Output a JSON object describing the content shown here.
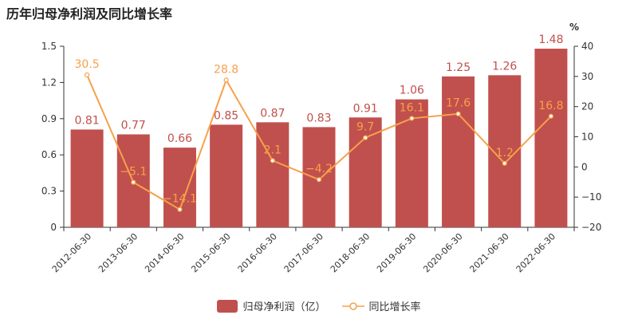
{
  "chart_data": {
    "type": "bar",
    "title": "历年归母净利润及同比增长率",
    "categories": [
      "2012-06-30",
      "2013-06-30",
      "2014-06-30",
      "2015-06-30",
      "2016-06-30",
      "2017-06-30",
      "2018-06-30",
      "2019-06-30",
      "2020-06-30",
      "2021-06-30",
      "2022-06-30"
    ],
    "series": [
      {
        "name": "归母净利润（亿）",
        "type": "bar",
        "axis": "left",
        "color": "#c0504d",
        "values": [
          0.81,
          0.77,
          0.66,
          0.85,
          0.87,
          0.83,
          0.91,
          1.06,
          1.25,
          1.26,
          1.48
        ],
        "labels": [
          "0.81",
          "0.77",
          "0.66",
          "0.85",
          "0.87",
          "0.83",
          "0.91",
          "1.06",
          "1.25",
          "1.26",
          "1.48"
        ]
      },
      {
        "name": "同比增长率",
        "type": "line",
        "axis": "right",
        "color": "#f7a04b",
        "values": [
          30.5,
          -5.1,
          -14.1,
          28.8,
          2.1,
          -4.2,
          9.7,
          16.1,
          17.6,
          1.2,
          16.8
        ],
        "labels": [
          "30.5",
          "−5.1",
          "−14.1",
          "28.8",
          "2.1",
          "−4.2",
          "9.7",
          "16.1",
          "17.6",
          "1.2",
          "16.8"
        ]
      }
    ],
    "left_axis": {
      "min": 0,
      "max": 1.5,
      "ticks": [
        0,
        0.3,
        0.6,
        0.9,
        1.2,
        1.5
      ],
      "tick_labels": [
        "0",
        "0.3",
        "0.6",
        "0.9",
        "1.2",
        "1.5"
      ]
    },
    "right_axis": {
      "min": -20,
      "max": 40,
      "unit": "%",
      "ticks": [
        -20,
        -10,
        0,
        10,
        20,
        30,
        40
      ],
      "tick_labels": [
        "−20",
        "−10",
        "0",
        "10",
        "20",
        "30",
        "40"
      ]
    },
    "grid": false,
    "legend_position": "bottom"
  }
}
